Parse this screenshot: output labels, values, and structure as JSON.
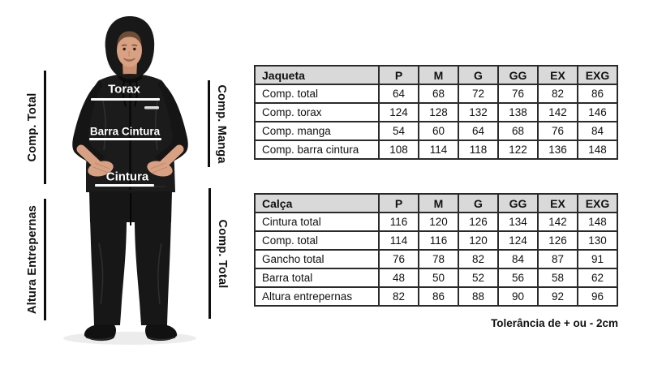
{
  "figure": {
    "annotations": {
      "jacket_length_label": "Comp. Total",
      "inseam_label": "Altura Entrepernas",
      "sleeve_length_label": "Comp. Manga",
      "pants_length_label": "Comp. Total"
    },
    "garment_labels": {
      "torax": "Torax",
      "barra_cintura": "Barra Cintura",
      "cintura": "Cintura"
    }
  },
  "tables": [
    {
      "title": "Jaqueta",
      "sizes": [
        "P",
        "M",
        "G",
        "GG",
        "EX",
        "EXG"
      ],
      "rows": [
        {
          "label": "Comp. total",
          "values": [
            64,
            68,
            72,
            76,
            82,
            86
          ]
        },
        {
          "label": "Comp. torax",
          "values": [
            124,
            128,
            132,
            138,
            142,
            146
          ]
        },
        {
          "label": "Comp. manga",
          "values": [
            54,
            60,
            64,
            68,
            76,
            84
          ]
        },
        {
          "label": "Comp. barra cintura",
          "values": [
            108,
            114,
            118,
            122,
            136,
            148
          ]
        }
      ]
    },
    {
      "title": "Calça",
      "sizes": [
        "P",
        "M",
        "G",
        "GG",
        "EX",
        "EXG"
      ],
      "rows": [
        {
          "label": "Cintura total",
          "values": [
            116,
            120,
            126,
            134,
            142,
            148
          ]
        },
        {
          "label": "Comp. total",
          "values": [
            114,
            116,
            120,
            124,
            126,
            130
          ]
        },
        {
          "label": "Gancho total",
          "values": [
            76,
            78,
            82,
            84,
            87,
            91
          ]
        },
        {
          "label": "Barra total",
          "values": [
            48,
            50,
            52,
            56,
            58,
            62
          ]
        },
        {
          "label": "Altura entrepernas",
          "values": [
            82,
            86,
            88,
            90,
            92,
            96
          ]
        }
      ]
    }
  ],
  "footer": {
    "tolerance_note": "Tolerância de  + ou - 2cm"
  },
  "colors": {
    "table_header_bg": "#d9d9d9",
    "table_border": "#2a2a2a",
    "annotation_line": "#0e0e0e",
    "garment_label_text": "#ffffff",
    "suit_black": "#1a1a1a",
    "skin": "#d8a183",
    "background": "#ffffff"
  }
}
